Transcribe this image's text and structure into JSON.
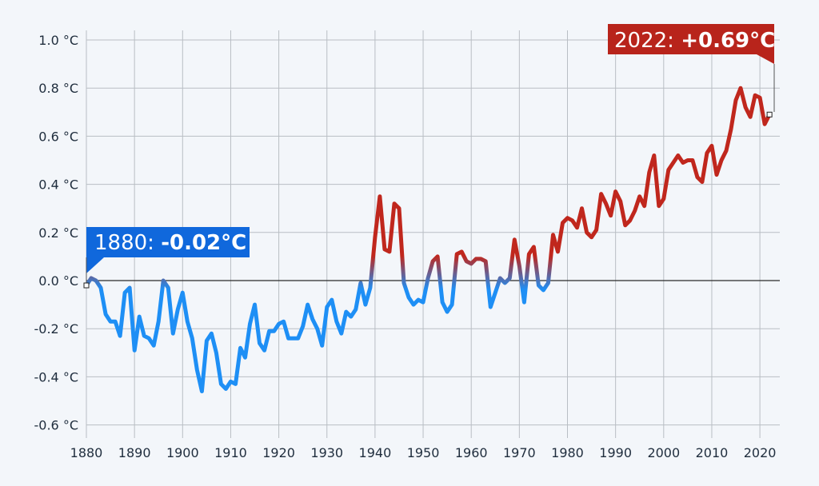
{
  "chart_data": {
    "type": "line",
    "title": "",
    "xlabel": "",
    "ylabel": "",
    "xlim": [
      1880,
      2022
    ],
    "ylim": [
      -0.6,
      1.0
    ],
    "grid": true,
    "legend": "none",
    "x_ticks": [
      "1880",
      "1890",
      "1900",
      "1910",
      "1920",
      "1930",
      "1940",
      "1950",
      "1960",
      "1970",
      "1980",
      "1990",
      "2000",
      "2010",
      "2020"
    ],
    "y_ticks": [
      "1.0 °C",
      "0.8 °C",
      "0.6 °C",
      "0.4 °C",
      "0.2 °C",
      "0.0 °C",
      "-0.2 °C",
      "-0.4 °C",
      "-0.6 °C"
    ],
    "y_tick_values": [
      1.0,
      0.8,
      0.6,
      0.4,
      0.2,
      0.0,
      -0.2,
      -0.4,
      -0.6
    ],
    "colors": {
      "warm": "#c0271d",
      "cool": "#1e8ff5",
      "background": "#f3f6fa",
      "annotation_start": "#1068dc",
      "annotation_end": "#b8241b"
    },
    "annotations": [
      {
        "label": "1880: ",
        "value_label": "-0.02°C",
        "x": 1880,
        "y": -0.02
      },
      {
        "label": "2022: ",
        "value_label": "+0.69°C",
        "x": 2022,
        "y": 0.69
      }
    ],
    "series": [
      {
        "x_start": 1880,
        "values": [
          -0.02,
          0.01,
          0.0,
          -0.03,
          -0.14,
          -0.17,
          -0.17,
          -0.23,
          -0.05,
          -0.03,
          -0.29,
          -0.15,
          -0.23,
          -0.24,
          -0.27,
          -0.17,
          0.0,
          -0.03,
          -0.22,
          -0.12,
          -0.05,
          -0.17,
          -0.24,
          -0.37,
          -0.46,
          -0.25,
          -0.22,
          -0.3,
          -0.43,
          -0.45,
          -0.42,
          -0.43,
          -0.28,
          -0.32,
          -0.18,
          -0.1,
          -0.26,
          -0.29,
          -0.21,
          -0.21,
          -0.18,
          -0.17,
          -0.24,
          -0.24,
          -0.24,
          -0.19,
          -0.1,
          -0.16,
          -0.2,
          -0.27,
          -0.11,
          -0.08,
          -0.17,
          -0.22,
          -0.13,
          -0.15,
          -0.12,
          -0.01,
          -0.1,
          -0.03,
          0.18,
          0.35,
          0.13,
          0.12,
          0.32,
          0.3,
          -0.01,
          -0.07,
          -0.1,
          -0.08,
          -0.09,
          0.01,
          0.08,
          0.1,
          -0.09,
          -0.13,
          -0.1,
          0.11,
          0.12,
          0.08,
          0.07,
          0.09,
          0.09,
          0.08,
          -0.11,
          -0.05,
          0.01,
          -0.01,
          0.01,
          0.17,
          0.06,
          -0.09,
          0.11,
          0.14,
          -0.02,
          -0.04,
          -0.01,
          0.19,
          0.12,
          0.24,
          0.26,
          0.25,
          0.22,
          0.3,
          0.2,
          0.18,
          0.21,
          0.36,
          0.32,
          0.27,
          0.37,
          0.33,
          0.23,
          0.25,
          0.29,
          0.35,
          0.31,
          0.45,
          0.52,
          0.31,
          0.34,
          0.46,
          0.49,
          0.52,
          0.49,
          0.5,
          0.5,
          0.43,
          0.41,
          0.53,
          0.56,
          0.44,
          0.5,
          0.54,
          0.63,
          0.75,
          0.8,
          0.72,
          0.68,
          0.77,
          0.76,
          0.65,
          0.69
        ]
      }
    ]
  }
}
